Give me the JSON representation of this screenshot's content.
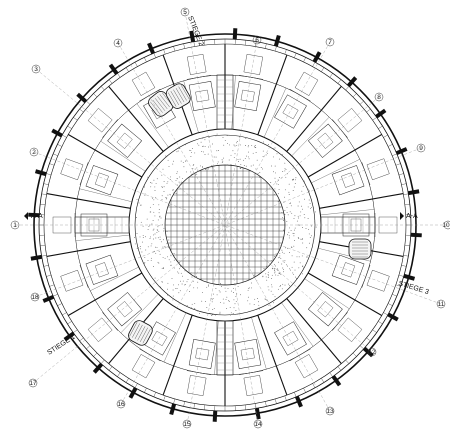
{
  "plan": {
    "axis_markers": [
      "1",
      "2",
      "3",
      "4",
      "5",
      "6",
      "7",
      "8",
      "9",
      "10",
      "11",
      "12",
      "13",
      "14",
      "15",
      "16",
      "17",
      "18"
    ],
    "stairs": [
      "STIEGE 1",
      "STIEGE 2",
      "STIEGE 3"
    ],
    "section_markers": [
      "A-A",
      "A-A"
    ]
  }
}
